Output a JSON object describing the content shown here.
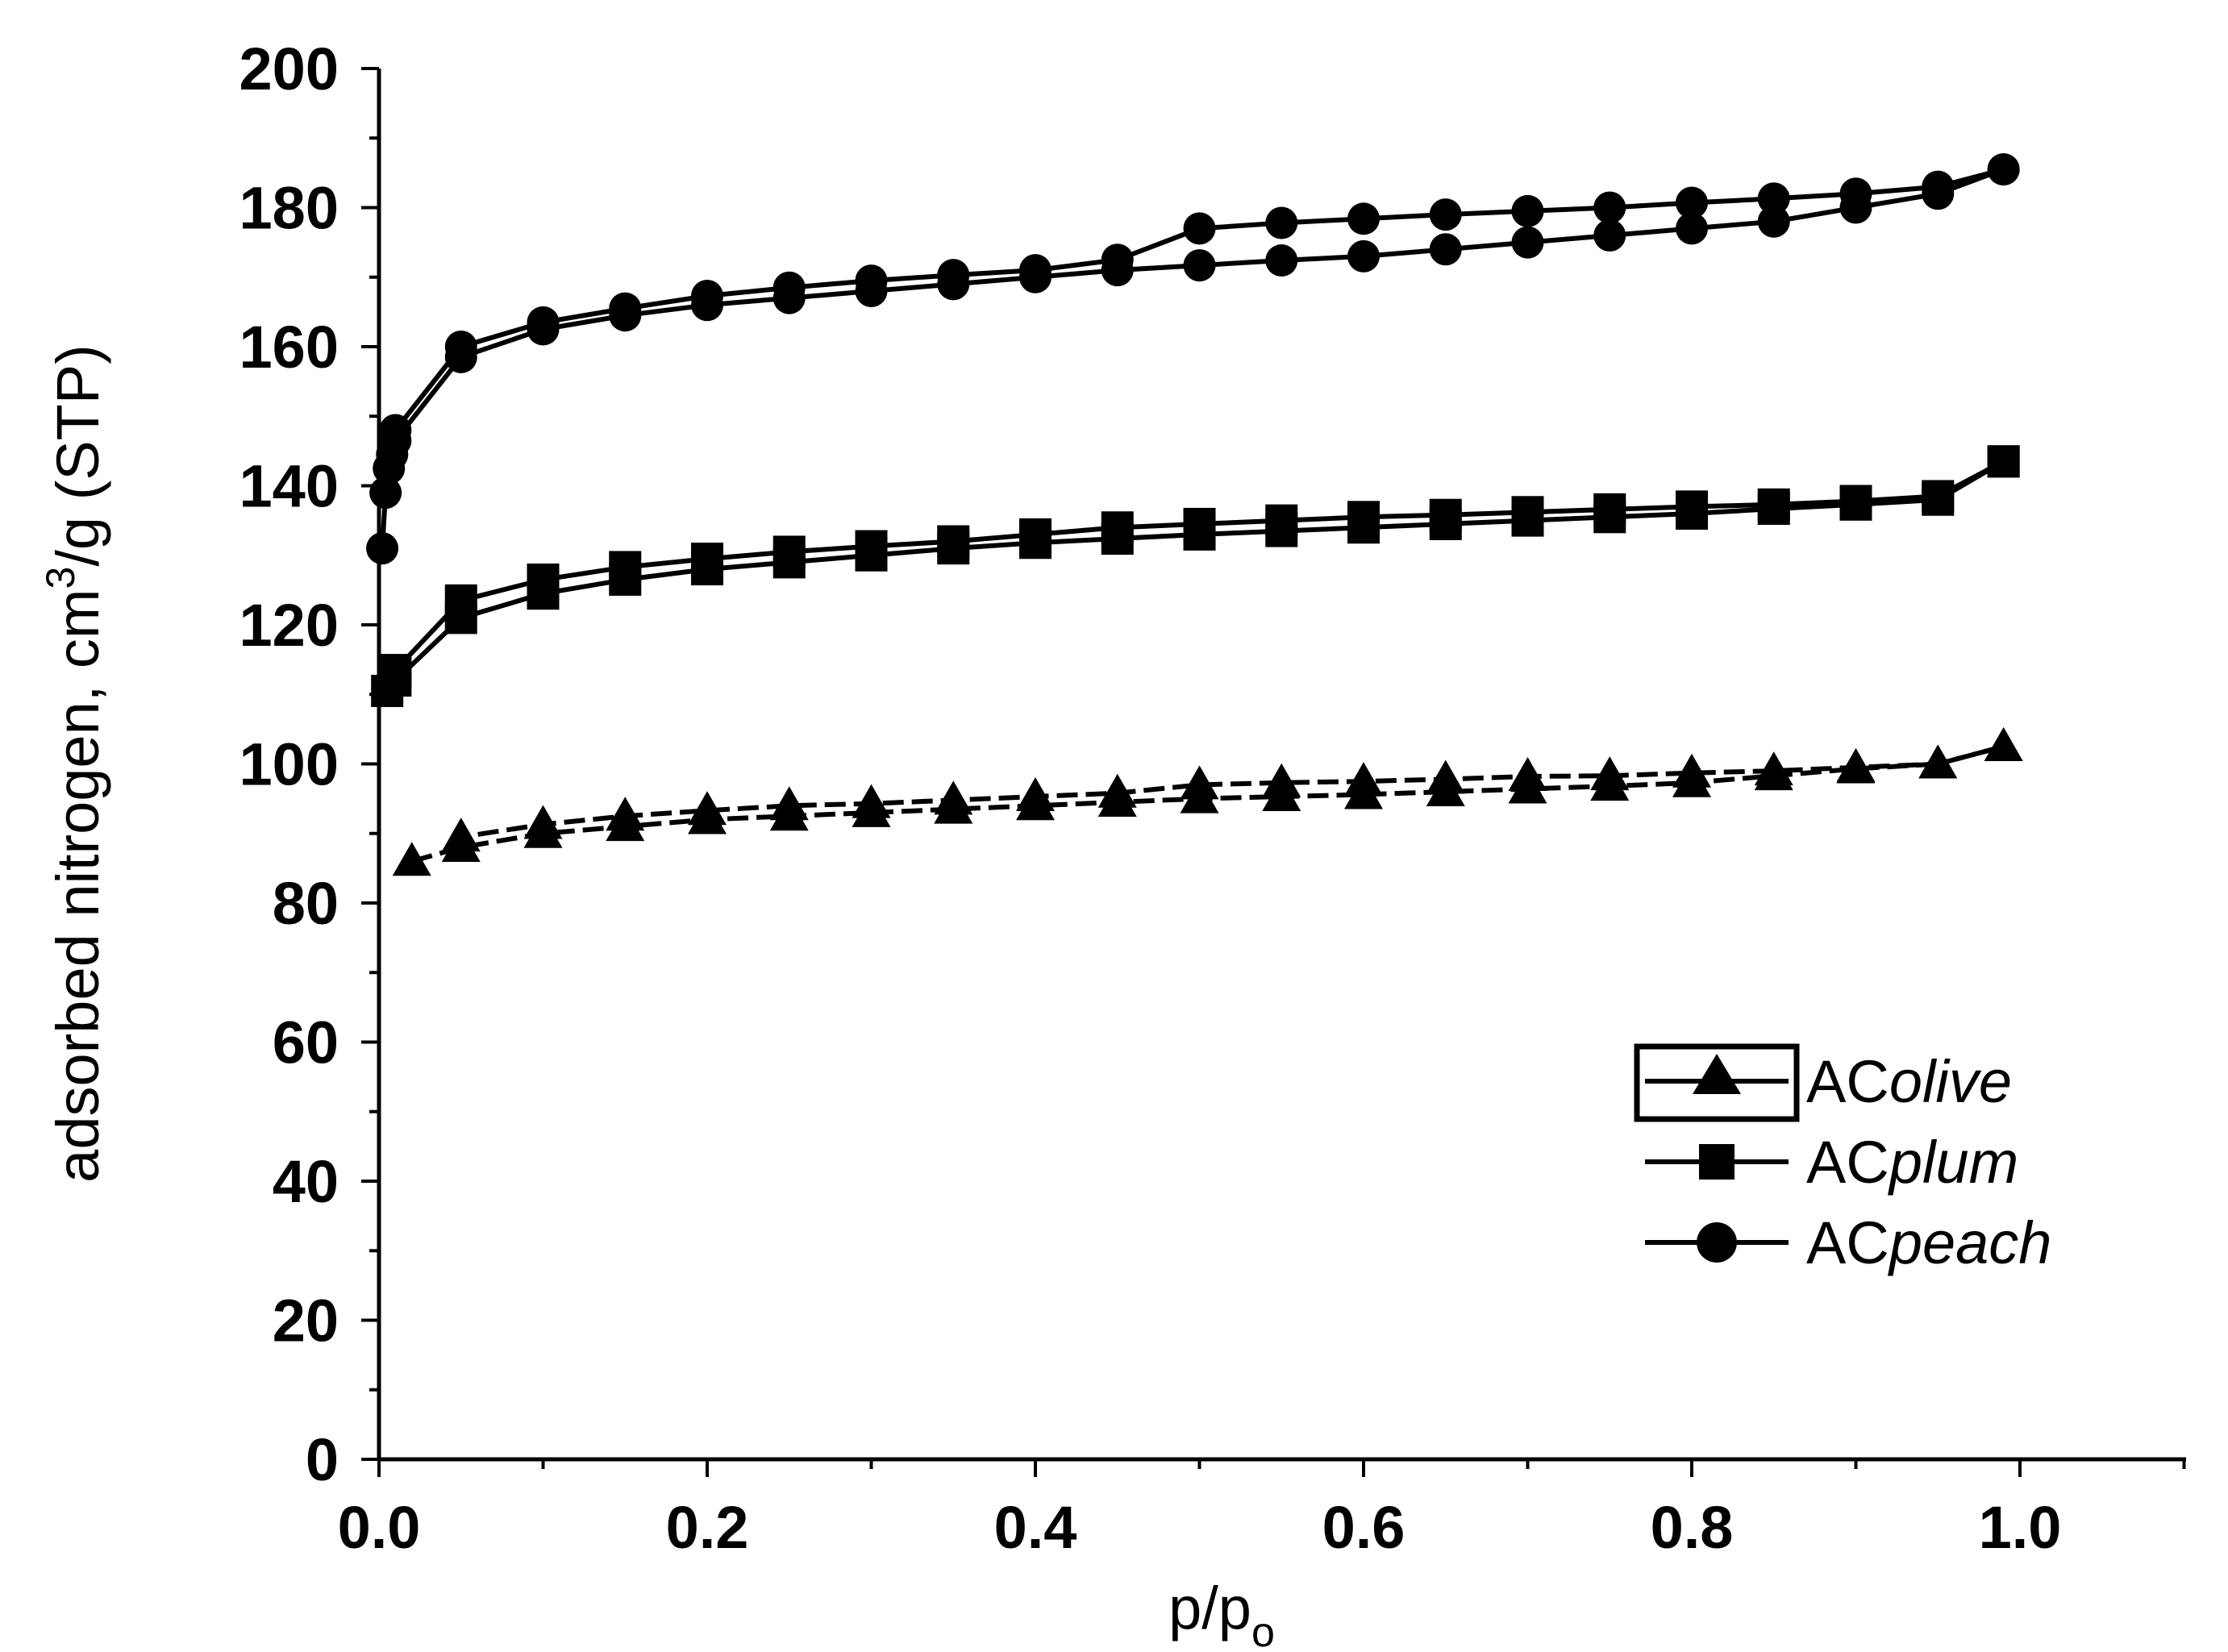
{
  "chart_data": {
    "type": "line",
    "title": "",
    "xlabel": "p/p",
    "xlabel_sub": "o",
    "ylabel_pre": "adsorbed nitrogen, cm",
    "ylabel_sup": "3",
    "ylabel_post": "/g (STP)",
    "xlim": [
      0,
      1.1
    ],
    "ylim": [
      0,
      200
    ],
    "x_ticks": [
      0.0,
      0.2,
      0.4,
      0.6,
      0.8,
      1.0
    ],
    "x_tick_labels": [
      "0.0",
      "0.2",
      "0.4",
      "0.6",
      "0.8",
      "1.0"
    ],
    "y_ticks": [
      0,
      20,
      40,
      60,
      80,
      100,
      120,
      140,
      160,
      180,
      200
    ],
    "y_tick_labels": [
      "0",
      "20",
      "40",
      "60",
      "80",
      "100",
      "120",
      "140",
      "160",
      "180",
      "200"
    ],
    "legend_position": "bottom-right",
    "series": [
      {
        "name": "AColive",
        "name_prefix": "AC",
        "name_suffix": "olive",
        "marker": "triangle",
        "style": "dashed",
        "adsorption": {
          "x": [
            0.02,
            0.05,
            0.1,
            0.15,
            0.2,
            0.25,
            0.3,
            0.35,
            0.4,
            0.45,
            0.5,
            0.55,
            0.6,
            0.65,
            0.7,
            0.75,
            0.8,
            0.85,
            0.9,
            0.95,
            0.99
          ],
          "y": [
            86,
            88,
            90,
            91,
            92,
            92.5,
            93,
            93.5,
            94,
            94.5,
            95,
            95.3,
            95.6,
            96,
            96.4,
            96.8,
            97.3,
            98.3,
            99.3,
            100,
            102.5
          ]
        },
        "desorption": {
          "x": [
            0.99,
            0.95,
            0.9,
            0.85,
            0.8,
            0.75,
            0.7,
            0.65,
            0.6,
            0.55,
            0.5,
            0.45,
            0.4,
            0.35,
            0.3,
            0.25,
            0.2,
            0.15,
            0.1,
            0.05
          ],
          "y": [
            102.5,
            100,
            99.5,
            99,
            98.7,
            98.3,
            98.2,
            97.8,
            97.5,
            97.3,
            97,
            95.8,
            95.3,
            94.8,
            94.3,
            94,
            93.3,
            92.5,
            91.3,
            89.5
          ]
        }
      },
      {
        "name": "ACplum",
        "name_prefix": "AC",
        "name_suffix": "plum",
        "marker": "square",
        "style": "solid",
        "adsorption": {
          "x": [
            0.005,
            0.01,
            0.05,
            0.1,
            0.15,
            0.2,
            0.25,
            0.3,
            0.35,
            0.4,
            0.45,
            0.5,
            0.55,
            0.6,
            0.65,
            0.7,
            0.75,
            0.8,
            0.85,
            0.9,
            0.95,
            0.99
          ],
          "y": [
            110.5,
            112,
            121,
            124.5,
            126.5,
            128,
            129,
            130,
            131,
            131.8,
            132.4,
            133,
            133.5,
            134,
            134.5,
            135,
            135.5,
            136,
            136.7,
            137.3,
            138,
            143.5
          ]
        },
        "desorption": {
          "x": [
            0.99,
            0.95,
            0.9,
            0.85,
            0.8,
            0.75,
            0.7,
            0.65,
            0.6,
            0.55,
            0.5,
            0.45,
            0.4,
            0.35,
            0.3,
            0.25,
            0.2,
            0.15,
            0.1,
            0.05,
            0.01
          ],
          "y": [
            143.5,
            138.5,
            137.8,
            137.3,
            137,
            136.6,
            136.2,
            135.8,
            135.5,
            135,
            134.5,
            134,
            133,
            132,
            131.3,
            130.5,
            129.5,
            128.3,
            126.5,
            123.5,
            113.5
          ]
        }
      },
      {
        "name": "ACpeach",
        "name_prefix": "AC",
        "name_suffix": "peach",
        "marker": "circle",
        "style": "solid",
        "adsorption": {
          "x": [
            0.002,
            0.004,
            0.006,
            0.008,
            0.01,
            0.05,
            0.1,
            0.15,
            0.2,
            0.25,
            0.3,
            0.35,
            0.4,
            0.45,
            0.5,
            0.55,
            0.6,
            0.65,
            0.7,
            0.75,
            0.8,
            0.85,
            0.9,
            0.95,
            0.99
          ],
          "y": [
            131,
            139,
            142.5,
            144.5,
            146.5,
            158.5,
            162.5,
            164.5,
            166,
            167,
            168,
            169,
            170,
            171,
            171.7,
            172.4,
            173,
            174,
            175,
            176,
            177,
            178,
            180,
            182,
            185.5
          ]
        },
        "desorption": {
          "x": [
            0.99,
            0.95,
            0.9,
            0.85,
            0.8,
            0.75,
            0.7,
            0.65,
            0.6,
            0.55,
            0.5,
            0.45,
            0.4,
            0.35,
            0.3,
            0.25,
            0.2,
            0.15,
            0.1,
            0.05,
            0.01
          ],
          "y": [
            185.5,
            183,
            182,
            181.3,
            180.7,
            180,
            179.5,
            179,
            178.4,
            177.8,
            177,
            172.5,
            171,
            170.3,
            169.5,
            168.5,
            167.3,
            165.5,
            163.5,
            160,
            148
          ]
        }
      }
    ]
  }
}
